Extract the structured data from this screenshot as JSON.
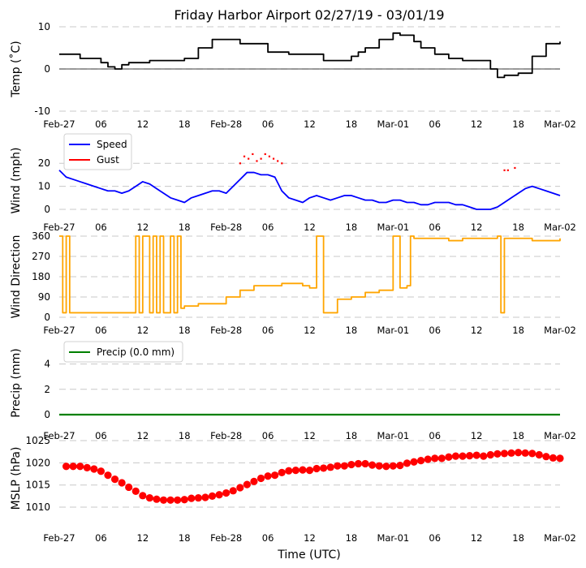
{
  "title": "Friday Harbor Airport 02/27/19 - 03/01/19",
  "x_axis_label": "Time (UTC)",
  "x_tick_labels": [
    "Feb-27",
    "06",
    "12",
    "18",
    "Feb-28",
    "06",
    "12",
    "18",
    "Mar-01",
    "06",
    "12",
    "18",
    "Mar-02"
  ],
  "colors": {
    "temp": "#000000",
    "speed": "#0000ff",
    "gust": "#ff0000",
    "direction": "#ffa500",
    "precip": "#008000",
    "mslp": "#ff0000",
    "grid": "#c8c8c8",
    "axis": "#333333"
  },
  "chart_data": [
    {
      "id": "temp",
      "type": "line",
      "ylabel": "Temp ($^\\circ$C)",
      "ylabel_display": "Temp (˚C)",
      "ylim": [
        -10,
        10
      ],
      "yticks": [
        -10,
        0,
        10
      ],
      "zero_line": true,
      "series": [
        {
          "name": "Temp",
          "color": "#000000",
          "x": [
            0,
            3,
            6,
            7,
            8,
            9,
            10,
            12,
            13,
            14,
            18,
            20,
            22,
            24,
            26,
            28,
            30,
            32,
            33,
            36,
            38,
            40,
            42,
            43,
            44,
            46,
            48,
            49,
            51,
            52,
            54,
            56,
            58,
            60,
            62,
            63,
            64,
            66,
            68,
            70,
            72
          ],
          "y": [
            3.5,
            2.5,
            1.5,
            0.5,
            0,
            1,
            1.5,
            1.5,
            2,
            2,
            2.5,
            5,
            7,
            7,
            6,
            6,
            4,
            4,
            3.5,
            3.5,
            2,
            2,
            3,
            4,
            5,
            7,
            8.5,
            8,
            6.5,
            5,
            3.5,
            2.5,
            2,
            2,
            0,
            -2,
            -1.5,
            -1,
            3,
            6,
            6.5
          ]
        }
      ]
    },
    {
      "id": "wind",
      "type": "line",
      "ylabel": "Wind (mph)",
      "ylim": [
        0,
        25
      ],
      "yticks": [
        0,
        10,
        20
      ],
      "legend": [
        "Speed",
        "Gust"
      ],
      "series": [
        {
          "name": "Speed",
          "color": "#0000ff",
          "x": [
            0,
            1,
            2,
            3,
            4,
            5,
            6,
            7,
            8,
            9,
            10,
            11,
            12,
            13,
            14,
            15,
            16,
            17,
            18,
            19,
            20,
            21,
            22,
            23,
            24,
            25,
            26,
            27,
            28,
            29,
            30,
            31,
            32,
            33,
            34,
            35,
            36,
            37,
            38,
            39,
            40,
            41,
            42,
            43,
            44,
            45,
            46,
            47,
            48,
            49,
            50,
            51,
            52,
            53,
            54,
            55,
            56,
            57,
            58,
            59,
            60,
            61,
            62,
            63,
            64,
            65,
            66,
            67,
            68,
            69,
            70,
            71,
            72
          ],
          "y": [
            17,
            14,
            13,
            12,
            11,
            10,
            9,
            8,
            8,
            7,
            8,
            10,
            12,
            11,
            9,
            7,
            5,
            4,
            3,
            5,
            6,
            7,
            8,
            8,
            7,
            10,
            13,
            16,
            16,
            15,
            15,
            14,
            8,
            5,
            4,
            3,
            5,
            6,
            5,
            4,
            5,
            6,
            6,
            5,
            4,
            4,
            3,
            3,
            4,
            4,
            3,
            3,
            2,
            2,
            3,
            3,
            3,
            2,
            2,
            1,
            0,
            0,
            0,
            1,
            3,
            5,
            7,
            9,
            10,
            9,
            8,
            7,
            6
          ]
        },
        {
          "name": "Gust",
          "color": "#ff0000",
          "x": [
            26.0,
            26.6,
            27.2,
            27.8,
            28.4,
            29.0,
            29.6,
            30.2,
            30.8,
            31.4,
            32.0,
            64.0,
            64.5,
            65.5
          ],
          "y": [
            20,
            23,
            22,
            24,
            21,
            22,
            24,
            23,
            22,
            21,
            20,
            17,
            17,
            18
          ]
        }
      ]
    },
    {
      "id": "direction",
      "type": "line",
      "ylabel": "Wind Direction",
      "ylim": [
        0,
        360
      ],
      "yticks": [
        0,
        90,
        180,
        270,
        360
      ],
      "series": [
        {
          "name": "Direction",
          "color": "#ffa500",
          "x": [
            0,
            0.5,
            1,
            1.5,
            2,
            4,
            8,
            10,
            11,
            11.5,
            12,
            13,
            13.5,
            14,
            14.5,
            15,
            16,
            16.5,
            17,
            17.5,
            18,
            20,
            22,
            24,
            26,
            28,
            30,
            32,
            34,
            35,
            36,
            37,
            38,
            40,
            42,
            44,
            46,
            47,
            48,
            49,
            50,
            50.5,
            51,
            52,
            54,
            56,
            58,
            60,
            62,
            63,
            63.5,
            64,
            66,
            68,
            70,
            72
          ],
          "y": [
            360,
            20,
            360,
            20,
            20,
            20,
            20,
            20,
            360,
            20,
            360,
            20,
            360,
            20,
            360,
            20,
            360,
            20,
            360,
            40,
            50,
            60,
            60,
            90,
            120,
            140,
            140,
            150,
            150,
            140,
            130,
            360,
            20,
            80,
            90,
            110,
            120,
            120,
            360,
            130,
            140,
            360,
            350,
            350,
            350,
            340,
            350,
            350,
            350,
            360,
            20,
            350,
            350,
            340,
            340,
            350
          ]
        }
      ]
    },
    {
      "id": "precip",
      "type": "line",
      "ylabel": "Precip (mm)",
      "ylim": [
        0,
        5
      ],
      "yticks": [
        0,
        2,
        4
      ],
      "legend": [
        "Precip (0.0 mm)"
      ],
      "series": [
        {
          "name": "Precip (0.0 mm)",
          "color": "#008000",
          "x": [
            0,
            72
          ],
          "y": [
            0,
            0
          ]
        }
      ]
    },
    {
      "id": "mslp",
      "type": "scatter",
      "ylabel": "MSLP (hPa)",
      "ylim": [
        1008,
        1025
      ],
      "yticks": [
        1010,
        1015,
        1020,
        1025
      ],
      "series": [
        {
          "name": "MSLP",
          "color": "#ff0000",
          "x": [
            1,
            2,
            3,
            4,
            5,
            6,
            7,
            8,
            9,
            10,
            11,
            12,
            13,
            14,
            15,
            16,
            17,
            18,
            19,
            20,
            21,
            22,
            23,
            24,
            25,
            26,
            27,
            28,
            29,
            30,
            31,
            32,
            33,
            34,
            35,
            36,
            37,
            38,
            39,
            40,
            41,
            42,
            43,
            44,
            45,
            46,
            47,
            48,
            49,
            50,
            51,
            52,
            53,
            54,
            55,
            56,
            57,
            58,
            59,
            60,
            61,
            62,
            63,
            64,
            65,
            66,
            67,
            68,
            69,
            70,
            71,
            72
          ],
          "y": [
            1019.2,
            1019.2,
            1019.2,
            1018.9,
            1018.6,
            1018.1,
            1017.2,
            1016.3,
            1015.5,
            1014.5,
            1013.6,
            1012.6,
            1012.1,
            1011.8,
            1011.6,
            1011.6,
            1011.6,
            1011.7,
            1012.0,
            1012.1,
            1012.2,
            1012.5,
            1012.8,
            1013.2,
            1013.7,
            1014.4,
            1015.1,
            1015.8,
            1016.5,
            1017.0,
            1017.2,
            1017.8,
            1018.2,
            1018.3,
            1018.4,
            1018.3,
            1018.7,
            1018.8,
            1019.0,
            1019.3,
            1019.3,
            1019.6,
            1019.8,
            1019.8,
            1019.5,
            1019.3,
            1019.2,
            1019.3,
            1019.4,
            1019.9,
            1020.2,
            1020.5,
            1020.8,
            1021.0,
            1021.0,
            1021.3,
            1021.5,
            1021.5,
            1021.6,
            1021.7,
            1021.5,
            1021.8,
            1022.0,
            1022.1,
            1022.2,
            1022.3,
            1022.2,
            1022.1,
            1021.8,
            1021.4,
            1021.1,
            1021.0
          ]
        }
      ]
    }
  ]
}
